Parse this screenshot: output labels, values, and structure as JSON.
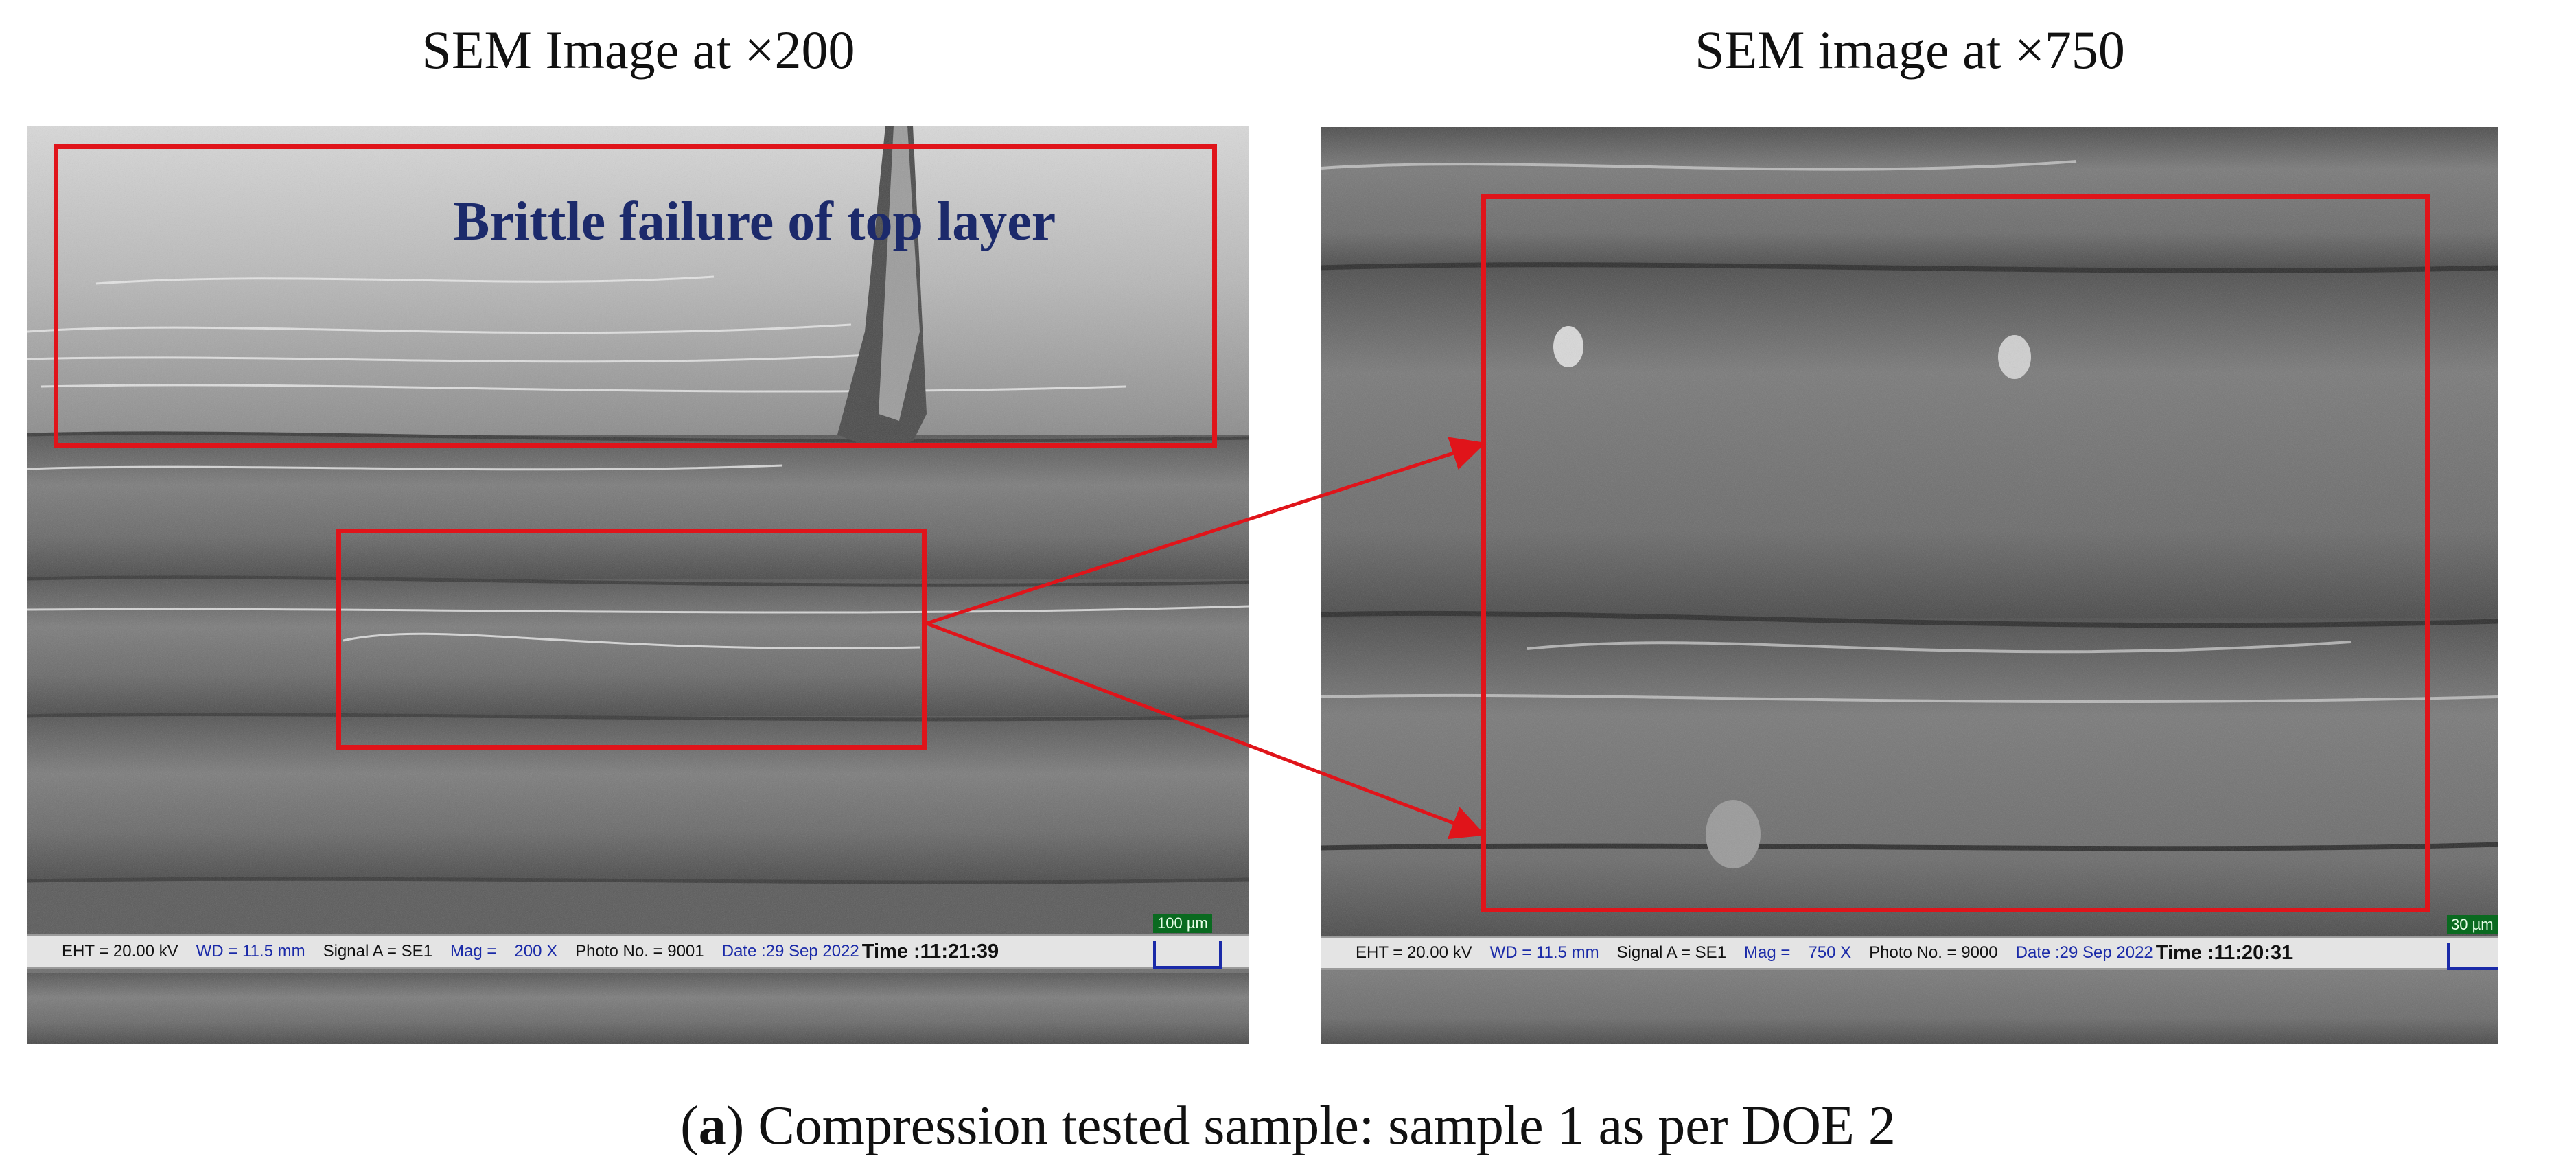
{
  "panels": [
    {
      "title": "SEM Image at ×200",
      "annotation": "Brittle failure of top layer",
      "databar": {
        "eht_k": "EHT = 20.00 kV",
        "wd_k": "WD = 11.5 mm",
        "signal_k": "Signal A = SE1",
        "mag_k": "Mag =",
        "mag_v": "200 X",
        "photo_k": "Photo No. = 9001",
        "date_v": "Date :29 Sep 2022",
        "time_v": "Time :11:21:39",
        "scale": "100 µm"
      }
    },
    {
      "title": "SEM image at ×750",
      "databar": {
        "eht_k": "EHT = 20.00 kV",
        "wd_k": "WD = 11.5 mm",
        "signal_k": "Signal A = SE1",
        "mag_k": "Mag =",
        "mag_v": "750 X",
        "photo_k": "Photo No. = 9000",
        "date_v": "Date :29 Sep 2022",
        "time_v": "Time :11:20:31",
        "scale": "30 µm"
      }
    }
  ],
  "caption": {
    "label": "a",
    "text": "Compression tested sample: sample 1 as per DOE 2"
  },
  "colors": {
    "annotation_box": "#e0141a",
    "annotation_text": "#1c2a6b",
    "databar_value": "#1a2aa8"
  }
}
